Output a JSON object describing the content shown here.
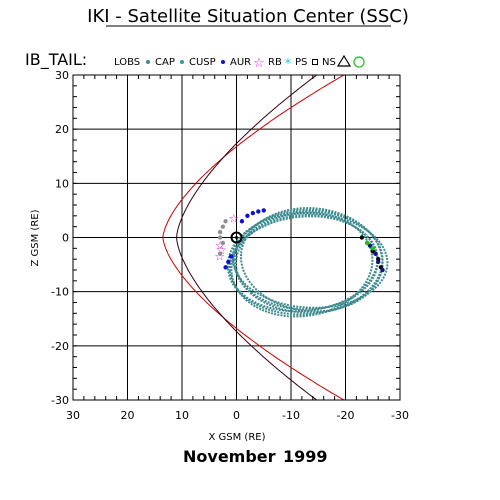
{
  "header": {
    "title": "IKI - Satellite Situation Center (SSC)",
    "series_label": "IB_TAIL:",
    "date_month": "November",
    "date_year": "1999"
  },
  "chart_data": {
    "type": "scatter",
    "title": "IKI - Satellite Situation Center (SSC)",
    "xlabel": "X GSM (RE)",
    "ylabel": "Z GSM (RE)",
    "xlim": [
      30,
      -30
    ],
    "ylim": [
      -30,
      30
    ],
    "x_ticks": [
      30,
      20,
      10,
      0,
      -10,
      -20,
      -30
    ],
    "y_ticks": [
      -30,
      -20,
      -10,
      0,
      10,
      20,
      30
    ],
    "grid": true,
    "legend_position": "top",
    "legend": [
      {
        "label": "LOBS",
        "marker": "dot",
        "color": "#4a8a8e"
      },
      {
        "label": "CAP",
        "marker": "dot",
        "color": "#3a9a98"
      },
      {
        "label": "CUSP",
        "marker": "dot",
        "color": "#1010d0"
      },
      {
        "label": "AUR",
        "marker": "star",
        "color": "#e020e0"
      },
      {
        "label": "RB",
        "marker": "asterisk",
        "color": "#20d0d0"
      },
      {
        "label": "PS",
        "marker": "square",
        "color": "#000000"
      },
      {
        "label": "NS",
        "marker": "triangle",
        "color": "#000000"
      },
      {
        "label": "",
        "marker": "circle",
        "color": "#20c020"
      }
    ],
    "boundaries": [
      {
        "name": "magnetopause",
        "color": "#cc0000",
        "nose_x": 13.5,
        "flare": 0.31
      },
      {
        "name": "bow shock",
        "color": "#330010",
        "nose_x": 11,
        "flare": 0.24
      }
    ],
    "earth": {
      "x": 0,
      "z": 0
    },
    "orbit": {
      "center_x": -12,
      "center_z": -5,
      "semi_x": 13,
      "semi_z": 9.5,
      "tilt_deg": -8,
      "num_orbits": 7,
      "color": "#3d8a90"
    },
    "regions": [
      {
        "name": "CUSP",
        "color": "#1010d0",
        "points": [
          [
            -1,
            3
          ],
          [
            -2,
            4
          ],
          [
            -3,
            4.5
          ],
          [
            -4,
            4.8
          ],
          [
            -5,
            5
          ],
          [
            1,
            -3.5
          ],
          [
            1.5,
            -4.5
          ],
          [
            2,
            -5.5
          ]
        ]
      },
      {
        "name": "AUR",
        "color": "#e020e0",
        "points": [
          [
            3,
            -1.5
          ],
          [
            2.8,
            -2.3
          ],
          [
            3.1,
            -3.5
          ],
          [
            0.5,
            3.5
          ]
        ]
      },
      {
        "name": "CAP",
        "color": "#909090",
        "points": [
          [
            2,
            3
          ],
          [
            2.5,
            2
          ],
          [
            3,
            1
          ],
          [
            3,
            0
          ],
          [
            2.5,
            -1
          ],
          [
            3,
            -3
          ]
        ]
      },
      {
        "name": "NS",
        "color": "#000000",
        "points": [
          [
            -23,
            0
          ],
          [
            -24,
            -1
          ],
          [
            -25,
            -2.5
          ],
          [
            -26,
            -4
          ],
          [
            -26.5,
            -5.5
          ]
        ]
      },
      {
        "name": "PS",
        "color": "#101080",
        "points": [
          [
            -24.5,
            -1.5
          ],
          [
            -25.5,
            -3
          ],
          [
            -26,
            -4.5
          ],
          [
            -26.8,
            -6
          ]
        ]
      },
      {
        "name": "RB",
        "color": "#20c020",
        "points": [
          [
            -24,
            -1
          ],
          [
            -25,
            -2
          ]
        ]
      }
    ]
  }
}
